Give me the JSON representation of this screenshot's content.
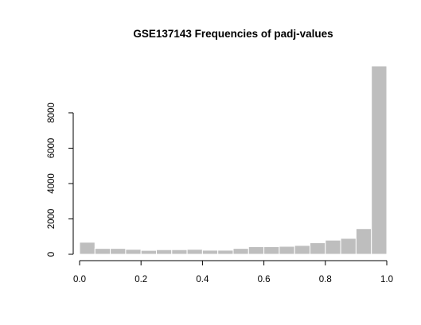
{
  "chart_data": {
    "type": "bar",
    "title": "GSE137143 Frequencies of padj-values",
    "xlabel": "",
    "ylabel": "",
    "bin_width": 0.05,
    "bins": [
      0.0,
      0.05,
      0.1,
      0.15,
      0.2,
      0.25,
      0.3,
      0.35,
      0.4,
      0.45,
      0.5,
      0.55,
      0.6,
      0.65,
      0.7,
      0.75,
      0.8,
      0.85,
      0.9,
      0.95
    ],
    "values": [
      680,
      330,
      330,
      280,
      220,
      260,
      260,
      280,
      230,
      230,
      330,
      430,
      430,
      450,
      500,
      650,
      800,
      900,
      1450,
      10650
    ],
    "xlim": [
      0,
      1
    ],
    "ylim": [
      0,
      10650
    ],
    "x_ticks": [
      "0.0",
      "0.2",
      "0.4",
      "0.6",
      "0.8",
      "1.0"
    ],
    "y_ticks": [
      "0",
      "2000",
      "4000",
      "6000",
      "8000"
    ],
    "colors": {
      "bar_fill": "#bebebe",
      "bar_border": "#ffffff",
      "axis": "#000000"
    }
  }
}
